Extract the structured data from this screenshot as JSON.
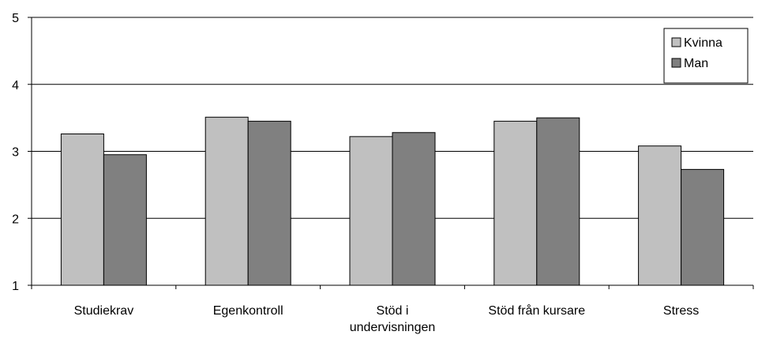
{
  "chart_data": {
    "type": "bar",
    "categories": [
      [
        "Studiekrav"
      ],
      [
        "Egenkontroll"
      ],
      [
        "Stöd i",
        "undervisningen"
      ],
      [
        "Stöd från kursare"
      ],
      [
        "Stress"
      ]
    ],
    "series": [
      {
        "name": "Kvinna",
        "color": "#c0c0c0",
        "values": [
          3.26,
          3.51,
          3.22,
          3.45,
          3.08
        ]
      },
      {
        "name": "Man",
        "color": "#808080",
        "values": [
          2.95,
          3.45,
          3.28,
          3.5,
          2.73
        ]
      }
    ],
    "ylim": [
      1,
      5
    ],
    "yticks": [
      1,
      2,
      3,
      4,
      5
    ],
    "grid": true,
    "legend": "top-right",
    "title": "",
    "xlabel": "",
    "ylabel": ""
  }
}
